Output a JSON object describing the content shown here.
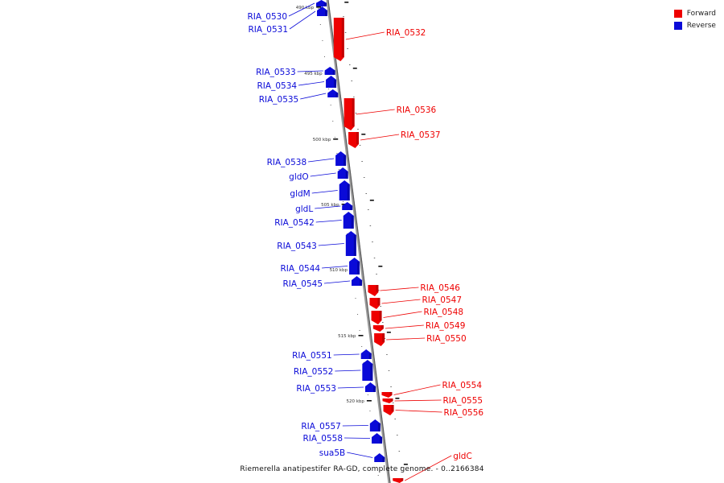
{
  "legend": [
    {
      "label": "Forward",
      "color": "#ee0000"
    },
    {
      "label": "Reverse",
      "color": "#0a0ad8"
    }
  ],
  "caption": "Riemerella anatipestifer RA-GD, complete genome. - 0..2166384",
  "colors": {
    "forward": "#ee0000",
    "reverse": "#0a0ad8",
    "backbone": "#888888"
  },
  "scale_labels": [
    "490 kbp",
    "495 kbp",
    "500 kbp",
    "505 kbp",
    "510 kbp",
    "515 kbp",
    "520 kbp"
  ],
  "genes": [
    {
      "name": "RIA_0530",
      "strand": "reverse"
    },
    {
      "name": "RIA_0531",
      "strand": "reverse"
    },
    {
      "name": "RIA_0532",
      "strand": "forward"
    },
    {
      "name": "RIA_0533",
      "strand": "reverse"
    },
    {
      "name": "RIA_0534",
      "strand": "reverse"
    },
    {
      "name": "RIA_0535",
      "strand": "reverse"
    },
    {
      "name": "RIA_0536",
      "strand": "forward"
    },
    {
      "name": "RIA_0537",
      "strand": "forward"
    },
    {
      "name": "RIA_0538",
      "strand": "reverse"
    },
    {
      "name": "gldO",
      "strand": "reverse"
    },
    {
      "name": "gldM",
      "strand": "reverse"
    },
    {
      "name": "gldL",
      "strand": "reverse"
    },
    {
      "name": "RIA_0542",
      "strand": "reverse"
    },
    {
      "name": "RIA_0543",
      "strand": "reverse"
    },
    {
      "name": "RIA_0544",
      "strand": "reverse"
    },
    {
      "name": "RIA_0545",
      "strand": "reverse"
    },
    {
      "name": "RIA_0546",
      "strand": "forward"
    },
    {
      "name": "RIA_0547",
      "strand": "forward"
    },
    {
      "name": "RIA_0548",
      "strand": "forward"
    },
    {
      "name": "RIA_0549",
      "strand": "forward"
    },
    {
      "name": "RIA_0550",
      "strand": "forward"
    },
    {
      "name": "RIA_0551",
      "strand": "reverse"
    },
    {
      "name": "RIA_0552",
      "strand": "reverse"
    },
    {
      "name": "RIA_0553",
      "strand": "reverse"
    },
    {
      "name": "RIA_0554",
      "strand": "forward"
    },
    {
      "name": "RIA_0555",
      "strand": "forward"
    },
    {
      "name": "RIA_0556",
      "strand": "forward"
    },
    {
      "name": "RIA_0557",
      "strand": "reverse"
    },
    {
      "name": "RIA_0558",
      "strand": "reverse"
    },
    {
      "name": "sua5B",
      "strand": "reverse"
    },
    {
      "name": "gldC",
      "strand": "forward"
    }
  ]
}
